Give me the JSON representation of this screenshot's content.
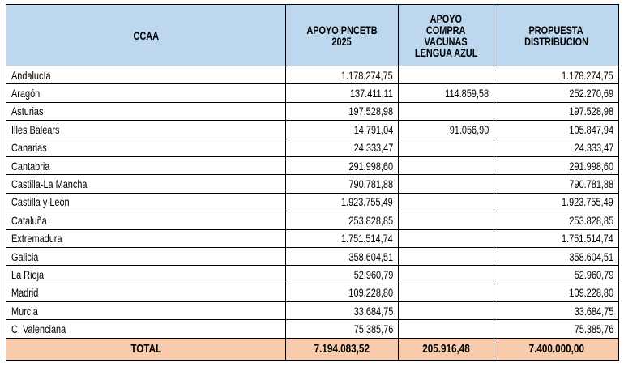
{
  "table": {
    "headers": [
      "CCAA",
      "APOYO PNCETB 2025",
      "APOYO COMPRA VACUNAS LENGUA AZUL",
      "PROPUESTA DISTRIBUCION"
    ],
    "header_lines": [
      [
        "CCAA"
      ],
      [
        "APOYO PNCETB",
        "2025"
      ],
      [
        "APOYO",
        "COMPRA",
        "VACUNAS",
        "LENGUA AZUL"
      ],
      [
        "PROPUESTA",
        "DISTRIBUCION"
      ]
    ],
    "rows": [
      [
        "Andalucía",
        "1.178.274,75",
        "",
        "1.178.274,75"
      ],
      [
        "Aragón",
        "137.411,11",
        "114.859,58",
        "252.270,69"
      ],
      [
        "Asturias",
        "197.528,98",
        "",
        "197.528,98"
      ],
      [
        "Illes Balears",
        "14.791,04",
        "91.056,90",
        "105.847,94"
      ],
      [
        "Canarias",
        "24.333,47",
        "",
        "24.333,47"
      ],
      [
        "Cantabria",
        "291.998,60",
        "",
        "291.998,60"
      ],
      [
        "Castilla-La Mancha",
        "790.781,88",
        "",
        "790.781,88"
      ],
      [
        "Castilla y León",
        "1.923.755,49",
        "",
        "1.923.755,49"
      ],
      [
        "Cataluña",
        "253.828,85",
        "",
        "253.828,85"
      ],
      [
        "Extremadura",
        "1.751.514,74",
        "",
        "1.751.514,74"
      ],
      [
        "Galicia",
        "358.604,51",
        "",
        "358.604,51"
      ],
      [
        "La Rioja",
        "52.960,79",
        "",
        "52.960,79"
      ],
      [
        "Madrid",
        "109.228,80",
        "",
        "109.228,80"
      ],
      [
        "Murcia",
        "33.684,75",
        "",
        "33.684,75"
      ],
      [
        "C. Valenciana",
        "75.385,76",
        "",
        "75.385,76"
      ]
    ],
    "total": [
      "TOTAL",
      "7.194.083,52",
      "205.916,48",
      "7.400.000,00"
    ]
  },
  "colors": {
    "header_bg": "#bdd7ee",
    "total_bg": "#f8cbad"
  }
}
